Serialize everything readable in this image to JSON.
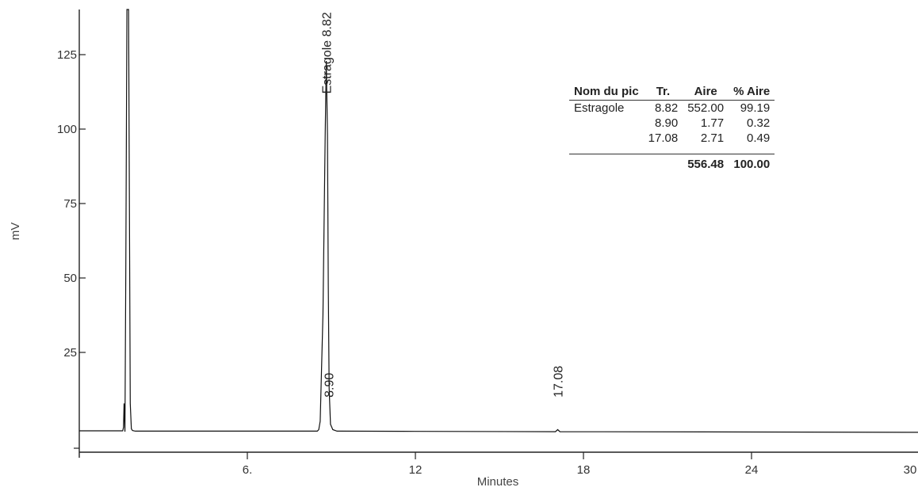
{
  "chart_data": {
    "type": "line",
    "xlabel": "Minutes",
    "ylabel": "mV",
    "xlim": [
      0,
      30
    ],
    "ylim": [
      -5,
      145
    ],
    "x_ticks": [
      6,
      12,
      18,
      24,
      30
    ],
    "x_tick_labels": [
      "6.",
      "12",
      "18",
      "24",
      "30"
    ],
    "y_ticks": [
      25,
      50,
      75,
      100,
      125
    ],
    "y_tick_labels": [
      "25",
      "50",
      "75",
      "100",
      "125"
    ],
    "grid": false,
    "series": [
      {
        "x": [
          0,
          1.55,
          1.58,
          1.6,
          1.63,
          1.66,
          1.7,
          1.76,
          1.82,
          1.86,
          1.9,
          2.0,
          2.2,
          4.0,
          8.45,
          8.5,
          8.55,
          8.6,
          8.7,
          8.78,
          8.82,
          8.86,
          8.89,
          8.92,
          8.97,
          9.05,
          9.2,
          12,
          17.0,
          17.08,
          17.16,
          24,
          30
        ],
        "y": [
          0.8,
          0.8,
          2,
          10,
          0.5,
          55,
          170,
          150,
          10,
          1.5,
          0.9,
          0.7,
          0.7,
          0.7,
          0.7,
          0.7,
          1.2,
          4,
          40,
          100,
          125,
          100,
          50,
          15,
          3,
          1.2,
          0.7,
          0.6,
          0.5,
          1.2,
          0.5,
          0.4,
          0.3
        ]
      }
    ],
    "peak_labels": [
      {
        "x": 8.82,
        "y": 114,
        "text": "Estragole 8.82"
      },
      {
        "x": 8.9,
        "y": 12,
        "text": "8.90"
      },
      {
        "x": 17.08,
        "y": 12,
        "text": "17.08"
      }
    ]
  },
  "table": {
    "headers": [
      "Nom du pic",
      "Tr.",
      "Aire",
      "% Aire"
    ],
    "rows": [
      [
        "Estragole",
        "8.82",
        "552.00",
        "99.19"
      ],
      [
        "",
        "8.90",
        "1.77",
        "0.32"
      ],
      [
        "",
        "17.08",
        "2.71",
        "0.49"
      ]
    ],
    "totals": [
      "",
      "",
      "556.48",
      "100.00"
    ]
  }
}
